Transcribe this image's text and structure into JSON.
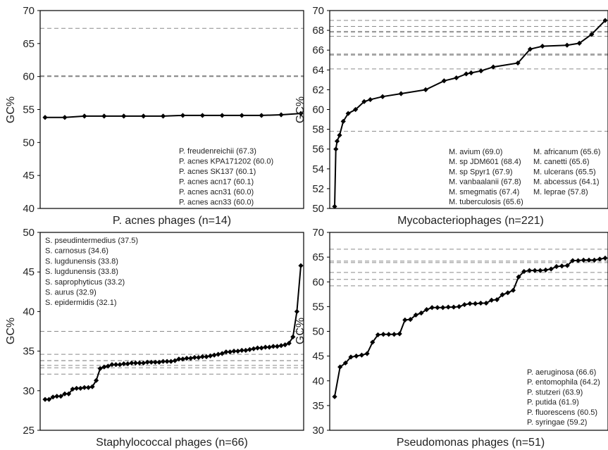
{
  "chart_data": [
    {
      "type": "line",
      "id": "p1",
      "xlabel": "P. acnes phages (n=14)",
      "ylabel": "GC%",
      "ylim": [
        40,
        70
      ],
      "yticks": [
        "40",
        "45",
        "50",
        "55",
        "60",
        "65",
        "70"
      ],
      "grid": false,
      "legend_placement": "bottom-right",
      "x": [
        1,
        2,
        3,
        4,
        5,
        6,
        7,
        8,
        9,
        10,
        11,
        12,
        13,
        14
      ],
      "values": [
        53.8,
        53.8,
        54.0,
        54.0,
        54.0,
        54.0,
        54.0,
        54.1,
        54.1,
        54.1,
        54.1,
        54.1,
        54.2,
        54.4
      ],
      "reference_lines": [
        67.3,
        60.0,
        60.1,
        60.1,
        60.0,
        60.0
      ],
      "annotations": [
        "P. freudenreichii (67.3)",
        "P. acnes KPA171202 (60.0)",
        "P. acnes SK137 (60.1)",
        "P. acnes acn17 (60.1)",
        "P. acnes acn31 (60.0)",
        "P. acnes acn33 (60.0)"
      ]
    },
    {
      "type": "line",
      "id": "p2",
      "xlabel": "Mycobacteriophages (n=221)",
      "ylabel": "GC%",
      "ylim": [
        50,
        70
      ],
      "yticks": [
        "50",
        "52",
        "54",
        "56",
        "58",
        "60",
        "62",
        "64",
        "66",
        "68",
        "70"
      ],
      "grid": false,
      "legend_placement": "bottom-right",
      "x": [
        1,
        2,
        3,
        5,
        8,
        12,
        18,
        25,
        30,
        40,
        55,
        75,
        90,
        100,
        108,
        112,
        120,
        130,
        150,
        160,
        170,
        190,
        200,
        210,
        221
      ],
      "values": [
        50.2,
        56.0,
        56.8,
        57.4,
        58.8,
        59.6,
        60.0,
        60.8,
        61.0,
        61.3,
        61.6,
        62.0,
        62.9,
        63.2,
        63.6,
        63.7,
        63.9,
        64.3,
        64.7,
        66.1,
        66.4,
        66.5,
        66.7,
        67.6,
        69.0
      ],
      "reference_lines": [
        69.0,
        68.4,
        67.9,
        67.8,
        67.4,
        65.6,
        65.6,
        65.6,
        65.5,
        64.1,
        57.8
      ],
      "annotations": [
        "M. avium (69.0)",
        "M. sp JDM601 (68.4)",
        "M. sp Spyr1 (67.9)",
        "M. vanbaalanii (67.8)",
        "M. smegmatis (67.4)",
        "M. tuberculosis (65.6)",
        "M. africanum (65.6)",
        "M. canetti (65.6)",
        "M. ulcerans (65.5)",
        "M. abcessus (64.1)",
        "M. leprae (57.8)"
      ]
    },
    {
      "type": "line",
      "id": "p3",
      "xlabel": "Staphylococcal phages (n=66)",
      "ylabel": "GC%",
      "ylim": [
        25,
        50
      ],
      "yticks": [
        "25",
        "30",
        "35",
        "40",
        "45",
        "50"
      ],
      "grid": false,
      "legend_placement": "top-left",
      "x": [
        1,
        2,
        3,
        4,
        5,
        6,
        7,
        8,
        9,
        10,
        11,
        12,
        13,
        14,
        15,
        16,
        17,
        18,
        19,
        20,
        21,
        22,
        23,
        24,
        25,
        26,
        27,
        28,
        29,
        30,
        31,
        32,
        33,
        34,
        35,
        36,
        37,
        38,
        39,
        40,
        41,
        42,
        43,
        44,
        45,
        46,
        47,
        48,
        49,
        50,
        51,
        52,
        53,
        54,
        55,
        56,
        57,
        58,
        59,
        60,
        61,
        62,
        63,
        64,
        65,
        66
      ],
      "values": [
        28.9,
        28.9,
        29.2,
        29.3,
        29.3,
        29.6,
        29.6,
        30.2,
        30.3,
        30.3,
        30.4,
        30.4,
        30.5,
        31.3,
        32.8,
        33.0,
        33.1,
        33.3,
        33.3,
        33.3,
        33.4,
        33.4,
        33.5,
        33.5,
        33.5,
        33.5,
        33.6,
        33.6,
        33.6,
        33.6,
        33.7,
        33.7,
        33.7,
        33.8,
        34.0,
        34.0,
        34.1,
        34.1,
        34.2,
        34.2,
        34.3,
        34.3,
        34.4,
        34.5,
        34.6,
        34.7,
        34.9,
        34.9,
        35.0,
        35.0,
        35.1,
        35.1,
        35.2,
        35.3,
        35.4,
        35.4,
        35.5,
        35.5,
        35.6,
        35.6,
        35.7,
        35.8,
        36.0,
        36.8,
        40.0,
        45.8
      ],
      "reference_lines": [
        37.5,
        34.6,
        33.8,
        33.8,
        33.2,
        32.9,
        32.1
      ],
      "annotations": [
        "S. pseudintermedius (37.5)",
        "S. carnosus (34.6)",
        "S. lugdunensis (33.8)",
        "S. lugdunensis (33.8)",
        "S. saprophyticus (33.2)",
        "S. aurus (32.9)",
        "S. epidermidis (32.1)"
      ]
    },
    {
      "type": "line",
      "id": "p4",
      "xlabel": "Pseudomonas phages (n=51)",
      "ylabel": "GC%",
      "ylim": [
        30,
        70
      ],
      "yticks": [
        "30",
        "35",
        "40",
        "45",
        "50",
        "55",
        "60",
        "65",
        "70"
      ],
      "grid": false,
      "legend_placement": "bottom-right",
      "x": [
        1,
        2,
        3,
        4,
        5,
        6,
        7,
        8,
        9,
        10,
        11,
        12,
        13,
        14,
        15,
        16,
        17,
        18,
        19,
        20,
        21,
        22,
        23,
        24,
        25,
        26,
        27,
        28,
        29,
        30,
        31,
        32,
        33,
        34,
        35,
        36,
        37,
        38,
        39,
        40,
        41,
        42,
        43,
        44,
        45,
        46,
        47,
        48,
        49,
        50,
        51
      ],
      "values": [
        36.8,
        42.8,
        43.6,
        44.8,
        45.0,
        45.2,
        45.5,
        47.8,
        49.3,
        49.4,
        49.4,
        49.4,
        49.5,
        52.3,
        52.4,
        53.3,
        53.7,
        54.4,
        54.8,
        54.8,
        54.8,
        54.9,
        54.9,
        55.0,
        55.4,
        55.6,
        55.6,
        55.7,
        55.7,
        56.3,
        56.4,
        57.4,
        57.8,
        58.3,
        61.0,
        62.1,
        62.3,
        62.3,
        62.3,
        62.4,
        62.6,
        63.1,
        63.2,
        63.3,
        64.3,
        64.3,
        64.4,
        64.4,
        64.4,
        64.6,
        64.8
      ],
      "reference_lines": [
        66.6,
        64.2,
        63.9,
        61.9,
        60.5,
        59.2
      ],
      "annotations": [
        "P. aeruginosa (66.6)",
        "P. entomophila (64.2)",
        "P. stutzeri (63.9)",
        "P. putida (61.9)",
        "P. fluorescens (60.5)",
        "P. syringae (59.2)"
      ]
    }
  ]
}
